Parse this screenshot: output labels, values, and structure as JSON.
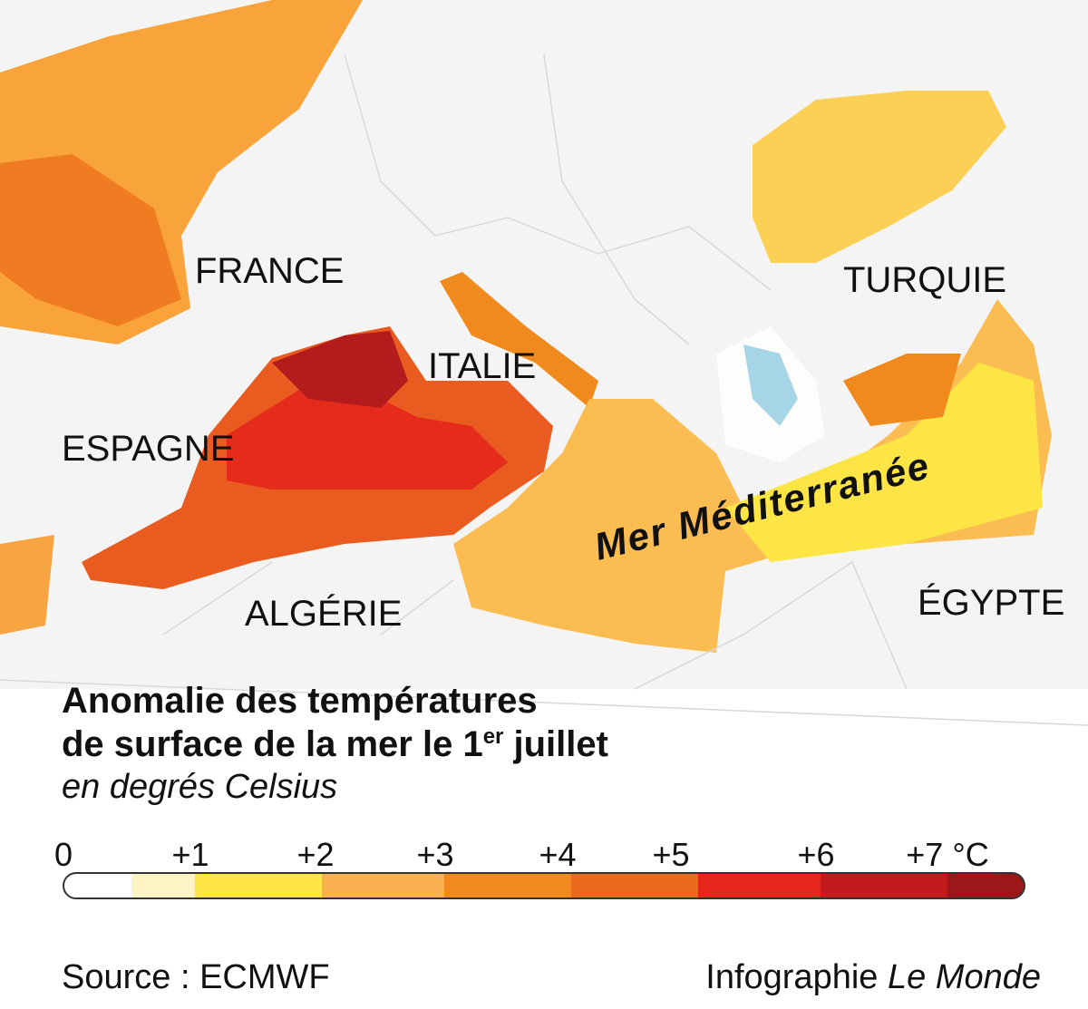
{
  "map": {
    "labels": {
      "france": "FRANCE",
      "italie": "ITALIE",
      "espagne": "ESPAGNE",
      "turquie": "TURQUIE",
      "algerie": "ALGÉRIE",
      "egypte": "ÉGYPTE",
      "sea": "Mer Méditerranée"
    }
  },
  "title": {
    "line1": "Anomalie des températures",
    "line2_start": "de surface de la mer  le 1",
    "line2_sup": "er",
    "line2_end": " juillet",
    "subtitle": "en degrés Celsius"
  },
  "legend": {
    "labels": [
      "0",
      "+1",
      "+2",
      "+3",
      "+4",
      "+5",
      "+6",
      "+7 °C"
    ],
    "colors": [
      "#ffffff",
      "#fdf3c4",
      "#fde546",
      "#f9b04f",
      "#f08a1c",
      "#ea6a1e",
      "#e4261b",
      "#c11b1e",
      "#9c1818"
    ]
  },
  "footer": {
    "source": "Source : ECMWF",
    "credit": "Infographie ",
    "brand": "Le Monde"
  }
}
